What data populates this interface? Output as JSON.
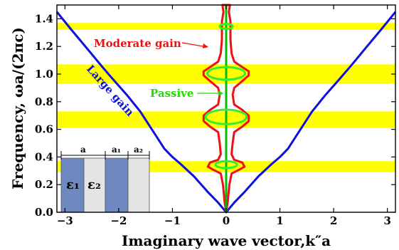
{
  "chart_data": {
    "type": "line",
    "xlabel": "Imaginary wave vector,k″a",
    "ylabel": "Frequency, ωa/(2πc)",
    "xlim": [
      -3.15,
      3.15
    ],
    "ylim": [
      0,
      1.5
    ],
    "x_ticks": [
      -3,
      -2,
      -1,
      0,
      1,
      2,
      3
    ],
    "y_ticks": [
      0.0,
      0.2,
      0.4,
      0.6,
      0.8,
      1.0,
      1.2,
      1.4
    ],
    "x_tick_labels": [
      "−3",
      "−2",
      "−1",
      "0",
      "1",
      "2",
      "3"
    ],
    "y_tick_labels": [
      "0.0",
      "0.2",
      "0.4",
      "0.6",
      "0.8",
      "1.0",
      "1.2",
      "1.4"
    ],
    "bands": [
      {
        "y0": 0.29,
        "y1": 0.37,
        "color": "#ffff00"
      },
      {
        "y0": 0.61,
        "y1": 0.73,
        "color": "#ffff00"
      },
      {
        "y0": 0.93,
        "y1": 1.07,
        "color": "#ffff00"
      },
      {
        "y0": 1.32,
        "y1": 1.37,
        "color": "#ffff00"
      }
    ],
    "series": [
      {
        "color": "#1010dd",
        "points": [
          [
            -3.15,
            1.45
          ],
          [
            -2.9,
            1.33
          ],
          [
            -2.6,
            1.19
          ],
          [
            -2.3,
            1.05
          ],
          [
            -2.1,
            0.96
          ],
          [
            -1.85,
            0.85
          ],
          [
            -1.6,
            0.73
          ],
          [
            -1.45,
            0.64
          ],
          [
            -1.3,
            0.55
          ],
          [
            -1.15,
            0.46
          ],
          [
            -1.0,
            0.4
          ],
          [
            -0.85,
            0.35
          ],
          [
            -0.6,
            0.26
          ],
          [
            -0.35,
            0.15
          ],
          [
            -0.15,
            0.07
          ],
          [
            0,
            0
          ],
          [
            0.15,
            0.07
          ],
          [
            0.35,
            0.15
          ],
          [
            0.6,
            0.26
          ],
          [
            0.85,
            0.35
          ],
          [
            1.0,
            0.4
          ],
          [
            1.15,
            0.46
          ],
          [
            1.3,
            0.55
          ],
          [
            1.45,
            0.64
          ],
          [
            1.6,
            0.73
          ],
          [
            1.85,
            0.85
          ],
          [
            2.1,
            0.96
          ],
          [
            2.3,
            1.05
          ],
          [
            2.6,
            1.19
          ],
          [
            2.9,
            1.33
          ],
          [
            3.15,
            1.45
          ]
        ]
      },
      {
        "color": "#ee1111",
        "closed": true,
        "points": [
          [
            0.0,
            0.0
          ],
          [
            0.03,
            0.08
          ],
          [
            0.06,
            0.2
          ],
          [
            0.1,
            0.28
          ],
          [
            0.25,
            0.31
          ],
          [
            0.34,
            0.33
          ],
          [
            0.3,
            0.36
          ],
          [
            0.15,
            0.38
          ],
          [
            0.1,
            0.42
          ],
          [
            0.12,
            0.5
          ],
          [
            0.15,
            0.58
          ],
          [
            0.3,
            0.62
          ],
          [
            0.42,
            0.66
          ],
          [
            0.42,
            0.7
          ],
          [
            0.3,
            0.74
          ],
          [
            0.15,
            0.78
          ],
          [
            0.12,
            0.85
          ],
          [
            0.15,
            0.9
          ],
          [
            0.3,
            0.95
          ],
          [
            0.42,
            0.99
          ],
          [
            0.42,
            1.02
          ],
          [
            0.3,
            1.05
          ],
          [
            0.15,
            1.09
          ],
          [
            0.1,
            1.15
          ],
          [
            0.08,
            1.25
          ],
          [
            0.08,
            1.38
          ],
          [
            0.05,
            1.45
          ],
          [
            0.07,
            1.5
          ],
          [
            -0.07,
            1.5
          ],
          [
            -0.05,
            1.45
          ],
          [
            -0.08,
            1.38
          ],
          [
            -0.08,
            1.25
          ],
          [
            -0.1,
            1.15
          ],
          [
            -0.15,
            1.09
          ],
          [
            -0.3,
            1.05
          ],
          [
            -0.42,
            1.02
          ],
          [
            -0.42,
            0.99
          ],
          [
            -0.3,
            0.95
          ],
          [
            -0.15,
            0.9
          ],
          [
            -0.12,
            0.85
          ],
          [
            -0.15,
            0.78
          ],
          [
            -0.3,
            0.74
          ],
          [
            -0.42,
            0.7
          ],
          [
            -0.42,
            0.66
          ],
          [
            -0.3,
            0.62
          ],
          [
            -0.15,
            0.58
          ],
          [
            -0.12,
            0.5
          ],
          [
            -0.1,
            0.42
          ],
          [
            -0.15,
            0.38
          ],
          [
            -0.3,
            0.36
          ],
          [
            -0.34,
            0.33
          ],
          [
            -0.25,
            0.31
          ],
          [
            -0.1,
            0.28
          ],
          [
            -0.06,
            0.2
          ],
          [
            -0.03,
            0.08
          ]
        ]
      },
      {
        "color": "#00bb00",
        "points": [
          [
            0,
            0
          ],
          [
            0,
            1.5
          ]
        ]
      }
    ],
    "passive_loops": [
      {
        "cx": 0,
        "cy": 0.345,
        "rx": 0.2,
        "ry": 0.025
      },
      {
        "cx": 0,
        "cy": 0.69,
        "rx": 0.38,
        "ry": 0.052
      },
      {
        "cx": 0,
        "cy": 1.005,
        "rx": 0.35,
        "ry": 0.045
      },
      {
        "cx": 0,
        "cy": 1.345,
        "rx": 0.12,
        "ry": 0.018
      }
    ],
    "annotations": [
      {
        "text": "Moderate gain",
        "color": "#ee1111"
      },
      {
        "text": "Passive",
        "color": "#22dd00"
      },
      {
        "text": "Large gain",
        "color": "#1010dd"
      }
    ],
    "inset": {
      "labels": [
        "a",
        "a₁",
        "a₂"
      ],
      "layers": [
        "ε₁",
        "ε₂",
        "",
        ""
      ],
      "colors": {
        "layer1": "#7088c0",
        "layer2": "#e4e4e4"
      }
    }
  }
}
